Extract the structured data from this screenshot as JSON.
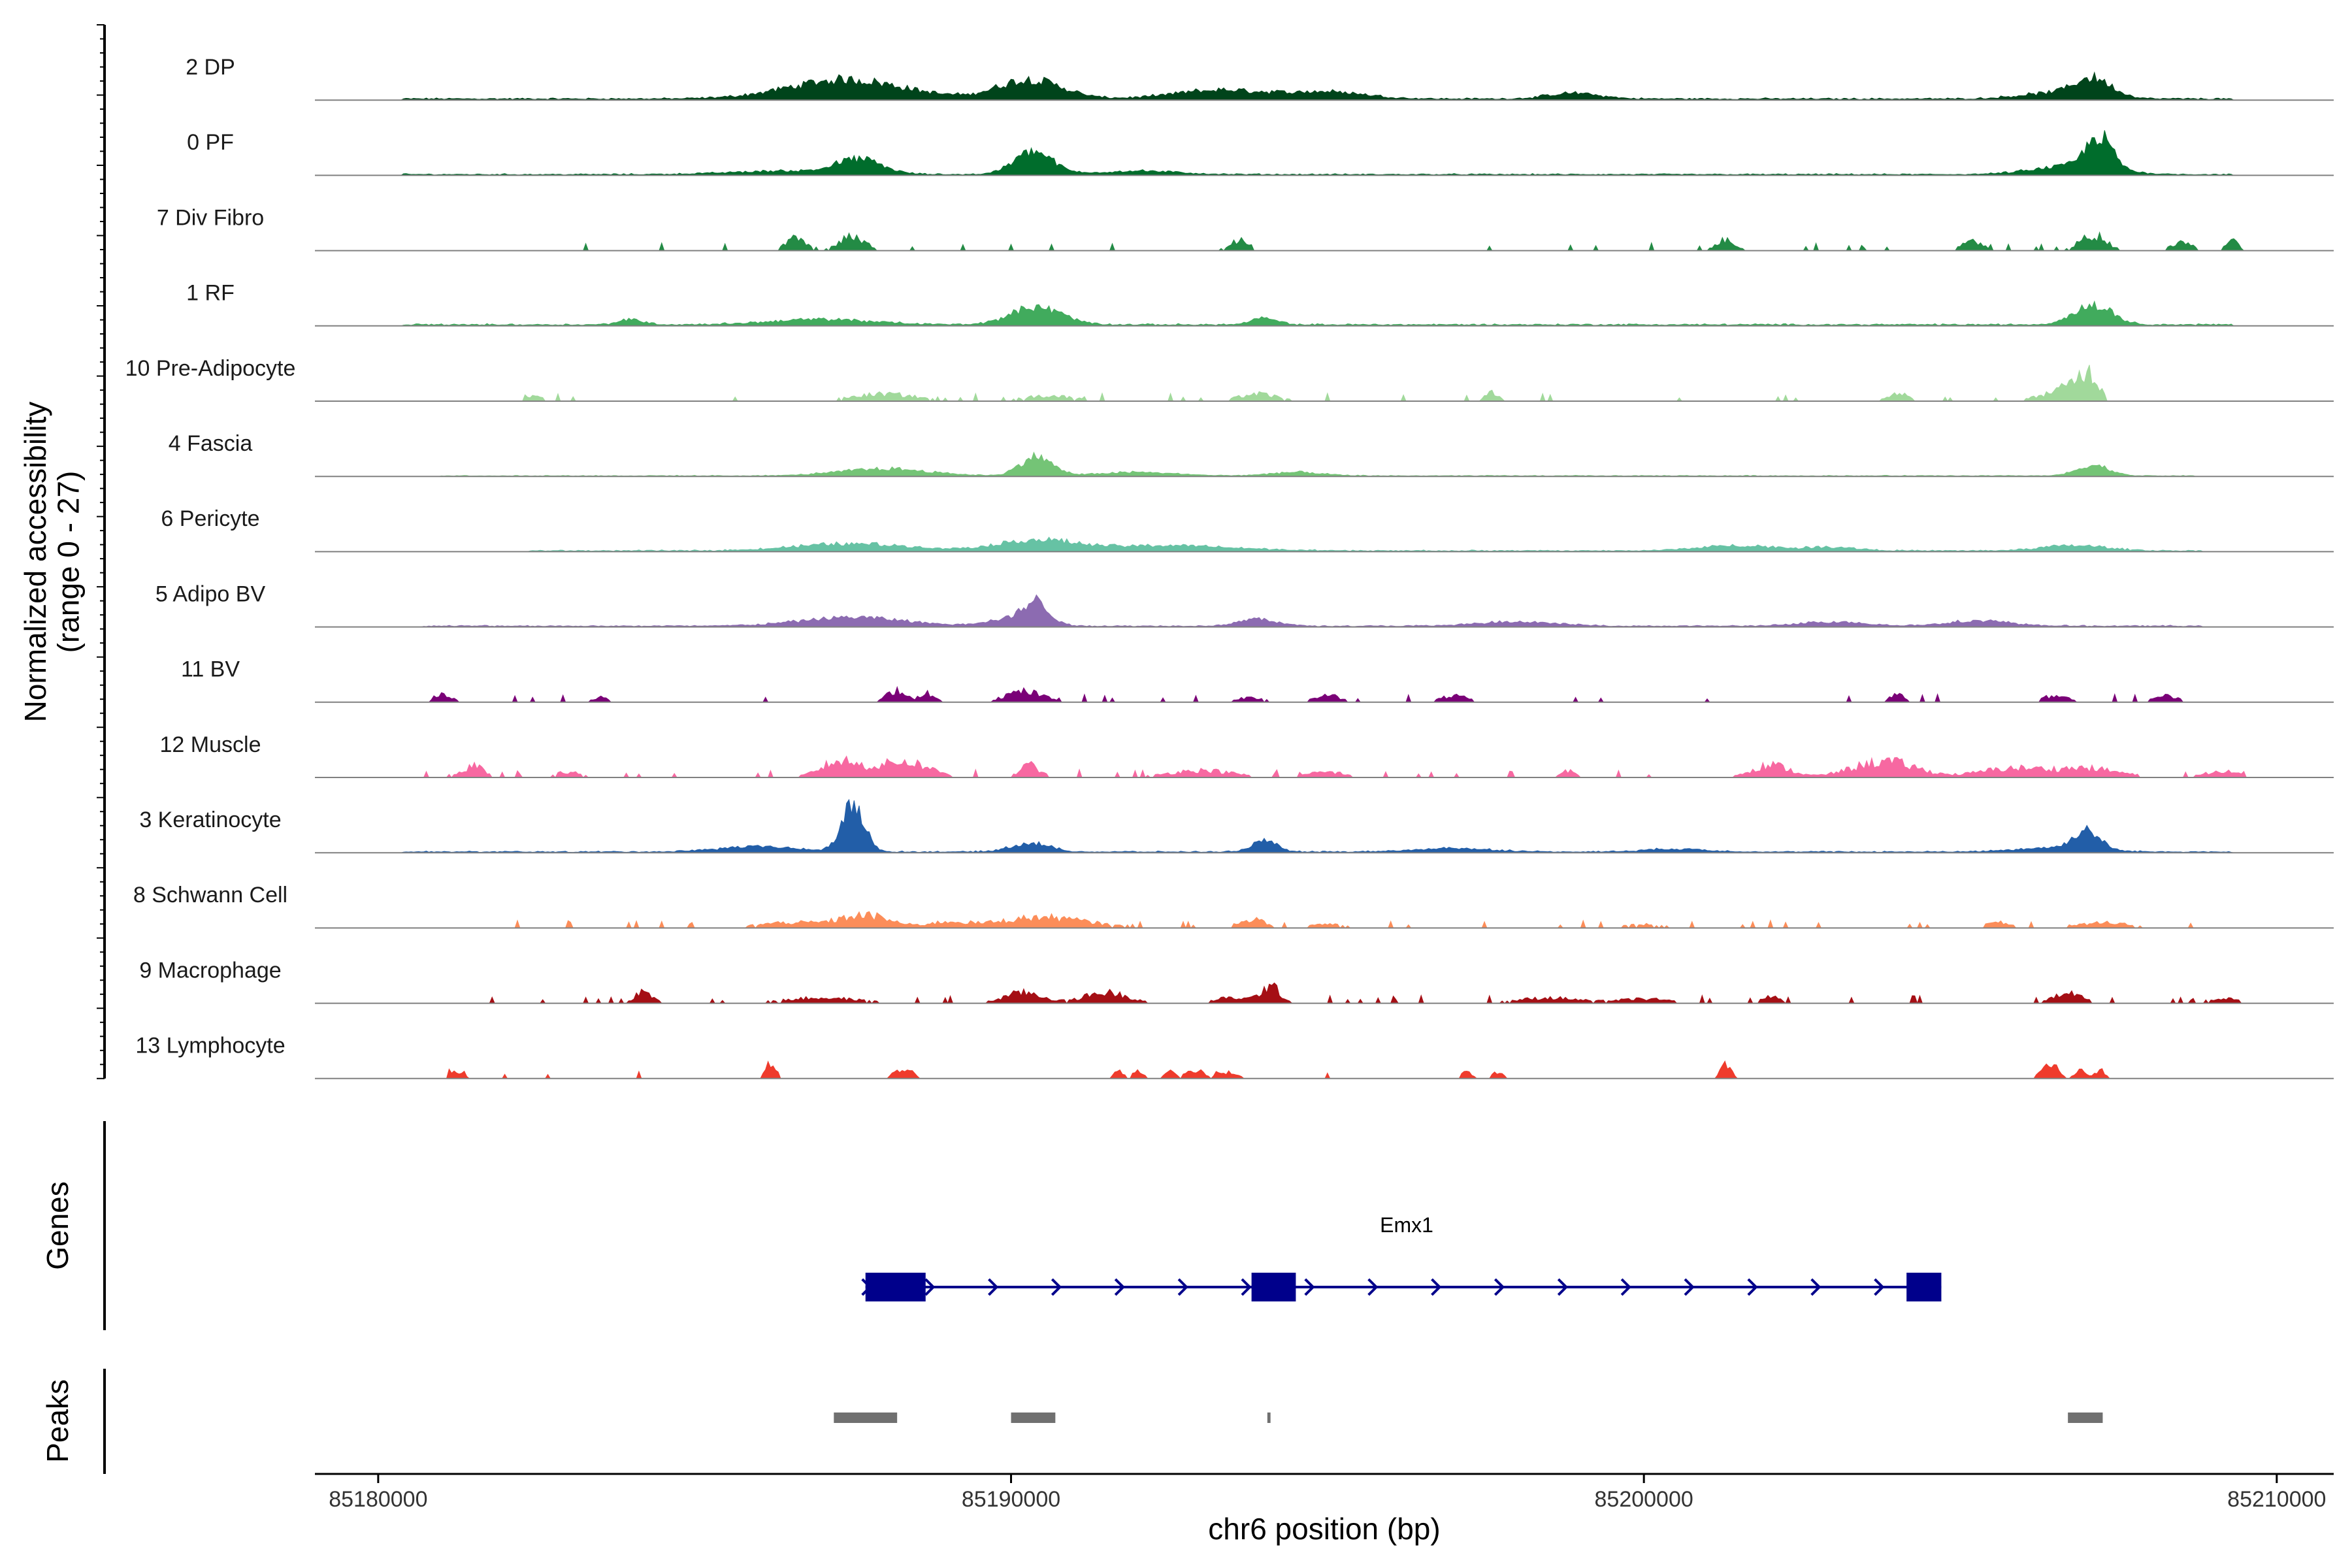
{
  "chart_data": {
    "type": "area",
    "title": "",
    "ylabel": "Normalized accessibility\n(range 0 - 27)",
    "y_range": [
      0,
      27
    ],
    "xlabel": "chr6 position (bp)",
    "x_range": [
      85179000,
      85210900
    ],
    "x_ticks": [
      85180000,
      85190000,
      85200000,
      85210000
    ],
    "x_tick_labels": [
      "85180000",
      "85190000",
      "85200000",
      "85210000"
    ],
    "tracks": [
      {
        "name": "2 DP",
        "color": "#00441b",
        "style": "continuous",
        "start": 85180400,
        "end": 85209300,
        "base": 0.4,
        "peaks": [
          [
            85187400,
            5.5,
            900
          ],
          [
            85190300,
            5.5,
            500
          ],
          [
            85193300,
            2.5,
            700
          ],
          [
            85195000,
            2.0,
            600
          ],
          [
            85198900,
            1.6,
            400
          ],
          [
            85206400,
            1.5,
            500
          ],
          [
            85207100,
            5.5,
            300
          ]
        ]
      },
      {
        "name": "0 PF",
        "color": "#006d2c",
        "style": "continuous",
        "start": 85180400,
        "end": 85209300,
        "base": 0.3,
        "peaks": [
          [
            85187600,
            4.0,
            350
          ],
          [
            85190350,
            6.5,
            300
          ],
          [
            85186500,
            1.0,
            900
          ],
          [
            85192000,
            1.0,
            600
          ],
          [
            85206800,
            2.5,
            600
          ],
          [
            85207200,
            9.0,
            200
          ]
        ]
      },
      {
        "name": "7 Div Fibro",
        "color": "#238b45",
        "style": "sparse",
        "start": 85182000,
        "end": 85209500,
        "density": 0.3,
        "peaks": [
          [
            85186600,
            3.5,
            150
          ],
          [
            85187500,
            4.0,
            200
          ],
          [
            85193600,
            3.0,
            150
          ],
          [
            85201300,
            3.0,
            150
          ],
          [
            85205200,
            3.0,
            150
          ],
          [
            85207100,
            4.5,
            200
          ],
          [
            85208500,
            2.5,
            150
          ],
          [
            85209300,
            2.5,
            100
          ]
        ]
      },
      {
        "name": "1 RF",
        "color": "#41ab5d",
        "style": "continuous",
        "start": 85180400,
        "end": 85209300,
        "base": 0.4,
        "peaks": [
          [
            85184000,
            1.5,
            200
          ],
          [
            85187000,
            1.5,
            800
          ],
          [
            85190400,
            5.0,
            400
          ],
          [
            85194000,
            1.8,
            200
          ],
          [
            85207100,
            5.5,
            300
          ]
        ]
      },
      {
        "name": "10 Pre-Adipocyte",
        "color": "#a1d99b",
        "style": "sparse",
        "start": 85182300,
        "end": 85207300,
        "density": 0.3,
        "peaks": [
          [
            85182400,
            1.5,
            200
          ],
          [
            85188000,
            2.0,
            500
          ],
          [
            85190600,
            1.5,
            400
          ],
          [
            85193900,
            2.0,
            300
          ],
          [
            85197600,
            2.5,
            100
          ],
          [
            85204000,
            2.5,
            150
          ],
          [
            85206800,
            4.0,
            400
          ],
          [
            85207000,
            5.0,
            150
          ]
        ]
      },
      {
        "name": "4 Fascia",
        "color": "#74c476",
        "style": "continuous",
        "start": 85181000,
        "end": 85208700,
        "base": 0.2,
        "peaks": [
          [
            85188000,
            2.0,
            700
          ],
          [
            85190400,
            5.5,
            250
          ],
          [
            85192000,
            1.0,
            600
          ],
          [
            85194500,
            1.0,
            400
          ],
          [
            85207100,
            3.0,
            250
          ]
        ]
      },
      {
        "name": "6 Pericyte",
        "color": "#66c2a4",
        "style": "continuous",
        "start": 85182400,
        "end": 85208800,
        "base": 0.3,
        "peaks": [
          [
            85187500,
            2.0,
            900
          ],
          [
            85190400,
            3.0,
            600
          ],
          [
            85192500,
            1.5,
            1000
          ],
          [
            85201500,
            1.5,
            600
          ],
          [
            85203000,
            1.0,
            400
          ],
          [
            85206800,
            1.5,
            500
          ]
        ]
      },
      {
        "name": "5 Adipo BV",
        "color": "#8c6bb1",
        "style": "continuous",
        "start": 85180700,
        "end": 85208800,
        "base": 0.3,
        "peaks": [
          [
            85187500,
            2.5,
            800
          ],
          [
            85190400,
            6.0,
            200
          ],
          [
            85190000,
            2.0,
            400
          ],
          [
            85193900,
            2.0,
            300
          ],
          [
            85198000,
            1.2,
            600
          ],
          [
            85203000,
            1.2,
            500
          ],
          [
            85205300,
            1.5,
            500
          ]
        ]
      },
      {
        "name": "11 BV",
        "color": "#7a0177",
        "style": "sparse",
        "start": 85180800,
        "end": 85208500,
        "density": 0.2,
        "peaks": [
          [
            85181000,
            2.0,
            150
          ],
          [
            85183500,
            1.5,
            100
          ],
          [
            85188200,
            3.5,
            150
          ],
          [
            85188700,
            2.5,
            100
          ],
          [
            85190200,
            3.0,
            300
          ],
          [
            85193800,
            1.5,
            200
          ],
          [
            85195000,
            2.0,
            200
          ],
          [
            85197000,
            1.8,
            200
          ],
          [
            85204000,
            2.5,
            100
          ],
          [
            85206500,
            1.8,
            200
          ],
          [
            85208300,
            1.8,
            200
          ]
        ]
      },
      {
        "name": "12 Muscle",
        "color": "#f768a1",
        "style": "sparse",
        "start": 85180600,
        "end": 85209500,
        "density": 0.4,
        "peaks": [
          [
            85181500,
            3.5,
            150
          ],
          [
            85183000,
            1.5,
            200
          ],
          [
            85187300,
            4.5,
            300
          ],
          [
            85188300,
            4.5,
            400
          ],
          [
            85190300,
            3.5,
            150
          ],
          [
            85193000,
            2.0,
            500
          ],
          [
            85195000,
            1.5,
            300
          ],
          [
            85198800,
            2.0,
            100
          ],
          [
            85202000,
            3.5,
            300
          ],
          [
            85203800,
            4.5,
            500
          ],
          [
            85205800,
            2.5,
            500
          ],
          [
            85207000,
            2.5,
            500
          ],
          [
            85209200,
            2.0,
            300
          ]
        ]
      },
      {
        "name": "3 Keratinocyte",
        "color": "#225ea8",
        "style": "continuous",
        "start": 85180400,
        "end": 85209300,
        "base": 0.3,
        "peaks": [
          [
            85187500,
            13.0,
            180
          ],
          [
            85186000,
            1.5,
            600
          ],
          [
            85190300,
            2.5,
            300
          ],
          [
            85194000,
            3.0,
            200
          ],
          [
            85197000,
            1.0,
            600
          ],
          [
            85200500,
            0.8,
            500
          ],
          [
            85206500,
            1.2,
            600
          ],
          [
            85207000,
            5.5,
            200
          ]
        ]
      },
      {
        "name": "8 Schwann Cell",
        "color": "#fc8d59",
        "style": "sparse",
        "start": 85181800,
        "end": 85209000,
        "density": 0.5,
        "peaks": [
          [
            85187700,
            3.5,
            400
          ],
          [
            85186500,
            1.5,
            500
          ],
          [
            85190500,
            3.0,
            700
          ],
          [
            85189000,
            1.5,
            300
          ],
          [
            85193800,
            2.5,
            200
          ],
          [
            85195000,
            1.0,
            300
          ],
          [
            85200000,
            1.0,
            300
          ],
          [
            85205600,
            1.5,
            200
          ],
          [
            85207300,
            1.5,
            400
          ]
        ]
      },
      {
        "name": "9 Macrophage",
        "color": "#a50f15",
        "style": "sparse",
        "start": 85181500,
        "end": 85209500,
        "density": 0.45,
        "peaks": [
          [
            85184200,
            3.0,
            150
          ],
          [
            85187000,
            1.5,
            600
          ],
          [
            85190200,
            3.0,
            300
          ],
          [
            85191500,
            3.0,
            350
          ],
          [
            85194100,
            4.5,
            150
          ],
          [
            85193500,
            1.5,
            300
          ],
          [
            85198500,
            1.5,
            500
          ],
          [
            85200000,
            1.2,
            400
          ],
          [
            85202000,
            2.0,
            150
          ],
          [
            85206700,
            3.5,
            200
          ],
          [
            85209200,
            1.5,
            200
          ]
        ]
      },
      {
        "name": "13 Lymphocyte",
        "color": "#ef3b2c",
        "style": "sparse",
        "start": 85181100,
        "end": 85207800,
        "density": 0.08,
        "peaks": [
          [
            85181100,
            2.0,
            80
          ],
          [
            85181300,
            2.0,
            80
          ],
          [
            85186200,
            4.5,
            80
          ],
          [
            85188200,
            2.0,
            80
          ],
          [
            85188400,
            2.0,
            80
          ],
          [
            85191700,
            2.0,
            80
          ],
          [
            85192000,
            2.0,
            80
          ],
          [
            85192500,
            2.0,
            80
          ],
          [
            85192800,
            2.0,
            80
          ],
          [
            85193000,
            2.0,
            80
          ],
          [
            85193300,
            2.0,
            80
          ],
          [
            85193500,
            2.0,
            80
          ],
          [
            85197200,
            2.0,
            80
          ],
          [
            85197700,
            2.0,
            80
          ],
          [
            85201300,
            4.5,
            80
          ],
          [
            85206300,
            3.0,
            80
          ],
          [
            85206500,
            4.0,
            80
          ],
          [
            85206900,
            2.5,
            80
          ],
          [
            85207200,
            2.5,
            80
          ]
        ]
      }
    ],
    "genes_label": "Genes",
    "gene": {
      "name": "Emx1",
      "strand": "+",
      "start": 85187700,
      "end": 85204700,
      "exons": [
        [
          85187700,
          85188650
        ],
        [
          85193800,
          85194500
        ],
        [
          85204150,
          85204700
        ]
      ],
      "color": "#00008b"
    },
    "peaks_label": "Peaks",
    "peak_regions": [
      [
        85187200,
        85188200
      ],
      [
        85190000,
        85190700
      ],
      [
        85194050,
        85194100
      ],
      [
        85206700,
        85207250
      ]
    ],
    "peak_color": "#707070"
  }
}
